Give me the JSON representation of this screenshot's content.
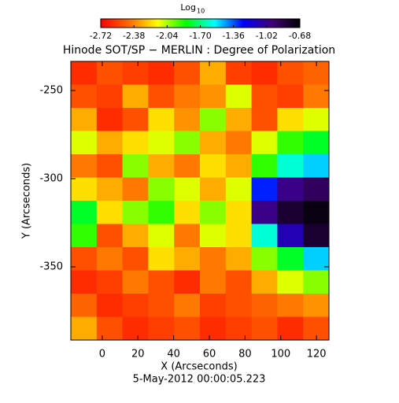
{
  "chart_data": {
    "type": "heatmap",
    "title": "Hinode SOT/SP − MERLIN : Degree of Polarization",
    "colorbar_title": "Log",
    "colorbar_title_sub": "10",
    "colorbar_lim": [
      -2.72,
      -0.68
    ],
    "colorbar_ticks": [
      -2.72,
      -2.38,
      -2.04,
      {
        "value": -1.7,
        "label": "-1.70"
      },
      -1.36,
      -1.02,
      -0.68
    ],
    "colormap": [
      "#ff0000",
      "#ff6a00",
      "#ffff00",
      "#00ff00",
      "#00ffff",
      "#0000ff",
      "#40007a",
      "#000000"
    ],
    "x_label": "X (Arcseconds)",
    "y_label": "Y (Arcseconds)",
    "footer": "5-May-2012 00:00:05.223",
    "xlim": [
      -17.6,
      127
    ],
    "ylim": [
      -391.5,
      -233.5
    ],
    "xticks": [
      0,
      20,
      40,
      60,
      80,
      100,
      120
    ],
    "yticks": [
      -250,
      -300,
      -350
    ],
    "z": [
      [
        -2.6,
        -2.5,
        -2.55,
        -2.6,
        -2.5,
        -2.3,
        -2.55,
        -2.6,
        -2.5,
        -2.45
      ],
      [
        -2.5,
        -2.55,
        -2.3,
        -2.5,
        -2.4,
        -2.35,
        -2.1,
        -2.5,
        -2.55,
        -2.4
      ],
      [
        -2.3,
        -2.6,
        -2.5,
        -2.2,
        -2.35,
        -2.0,
        -2.3,
        -2.5,
        -2.2,
        -2.1
      ],
      [
        -2.1,
        -2.3,
        -2.2,
        -2.1,
        -2.0,
        -2.3,
        -2.4,
        -2.1,
        -1.9,
        -1.8
      ],
      [
        -2.4,
        -2.5,
        -2.0,
        -2.3,
        -2.4,
        -2.2,
        -2.3,
        -1.9,
        -1.6,
        -1.5
      ],
      [
        -2.2,
        -2.3,
        -2.4,
        -2.0,
        -2.1,
        -2.3,
        -2.1,
        -1.3,
        -1.0,
        -0.9
      ],
      [
        -1.8,
        -2.2,
        -2.0,
        -1.9,
        -2.2,
        -2.0,
        -2.2,
        -1.0,
        -0.8,
        -0.72
      ],
      [
        -1.9,
        -2.5,
        -2.3,
        -2.1,
        -2.4,
        -2.1,
        -2.2,
        -1.6,
        -1.1,
        -0.8
      ],
      [
        -2.5,
        -2.4,
        -2.5,
        -2.2,
        -2.3,
        -2.4,
        -2.3,
        -2.0,
        -1.8,
        -1.5
      ],
      [
        -2.6,
        -2.55,
        -2.4,
        -2.5,
        -2.6,
        -2.4,
        -2.5,
        -2.3,
        -2.1,
        -2.0
      ],
      [
        -2.45,
        -2.6,
        -2.55,
        -2.5,
        -2.4,
        -2.55,
        -2.5,
        -2.45,
        -2.4,
        -2.35
      ],
      [
        -2.3,
        -2.5,
        -2.6,
        -2.55,
        -2.5,
        -2.6,
        -2.55,
        -2.5,
        -2.6,
        -2.5
      ]
    ]
  }
}
